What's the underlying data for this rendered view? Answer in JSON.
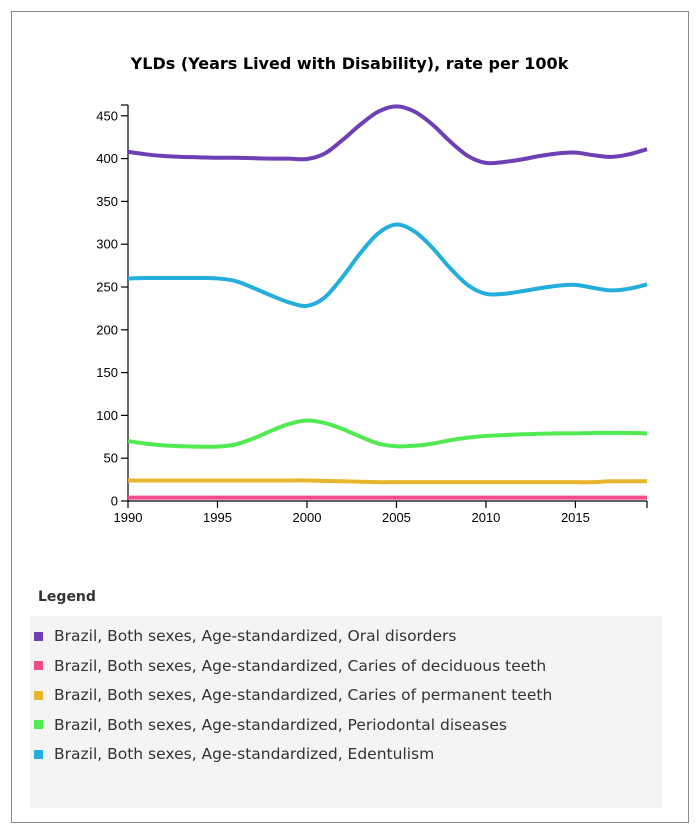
{
  "chart_data": {
    "type": "line",
    "title": "YLDs (Years Lived with Disability), rate per 100k",
    "xlim": [
      1990,
      2019
    ],
    "ylim": [
      0,
      460
    ],
    "x_ticks": [
      "1990",
      "1995",
      "2000",
      "2005",
      "2010",
      "2015"
    ],
    "y_ticks": [
      "0",
      "50",
      "100",
      "150",
      "200",
      "250",
      "300",
      "350",
      "400",
      "450"
    ],
    "x": [
      1990,
      1991,
      1992,
      1993,
      1994,
      1995,
      1996,
      1997,
      1998,
      1999,
      2000,
      2001,
      2002,
      2003,
      2004,
      2005,
      2006,
      2007,
      2008,
      2009,
      2010,
      2011,
      2012,
      2013,
      2014,
      2015,
      2016,
      2017,
      2018,
      2019
    ],
    "series": [
      {
        "name": "Brazil, Both sexes, Age-standardized, Oral disorders",
        "color": "#6f3fb5",
        "values": [
          408,
          405,
          403,
          402,
          401.5,
          401,
          401,
          400.5,
          400,
          400,
          399.5,
          406,
          422,
          440,
          455,
          461,
          455,
          440,
          420,
          403,
          395,
          396,
          399,
          403,
          406,
          407,
          404,
          402,
          405,
          411
        ]
      },
      {
        "name": "Brazil, Both sexes, Age-standardized, Caries of deciduous teeth",
        "color": "#f24d8a",
        "values": [
          4,
          4,
          4,
          4,
          4,
          4,
          4,
          4,
          4,
          4,
          4,
          4,
          4,
          4,
          4,
          4,
          4,
          4,
          4,
          4,
          4,
          4,
          4,
          4,
          4,
          4,
          4,
          4,
          4,
          4
        ]
      },
      {
        "name": "Brazil, Both sexes, Age-standardized, Caries of permanent teeth",
        "color": "#e8b52e",
        "values": [
          24,
          24,
          24,
          24,
          24,
          24,
          24,
          24,
          24,
          24,
          24,
          23.5,
          23,
          22.5,
          22,
          22,
          22,
          22,
          22,
          22,
          22,
          22,
          22,
          22,
          22,
          22,
          22,
          23,
          23,
          23
        ]
      },
      {
        "name": "Brazil, Both sexes, Age-standardized, Periodontal diseases",
        "color": "#52ea52",
        "values": [
          70,
          67,
          65,
          64,
          63.5,
          63.5,
          66,
          73,
          82,
          90,
          94,
          91,
          84,
          75,
          67,
          64,
          64.5,
          67,
          71,
          74,
          76,
          77,
          78,
          78.5,
          79,
          79,
          79.5,
          79.5,
          79.5,
          79
        ]
      },
      {
        "name": "Brazil, Both sexes, Age-standardized, Edentulism",
        "color": "#23aedd",
        "values": [
          260,
          260.5,
          260.5,
          260.5,
          260.5,
          260,
          257,
          249,
          240,
          232,
          228,
          238,
          262,
          290,
          313,
          323,
          315,
          296,
          272,
          252,
          242,
          242,
          245,
          248.5,
          251.5,
          252.5,
          249,
          246,
          248,
          253
        ]
      }
    ],
    "legend_title": "Legend",
    "legend_position": "bottom"
  }
}
